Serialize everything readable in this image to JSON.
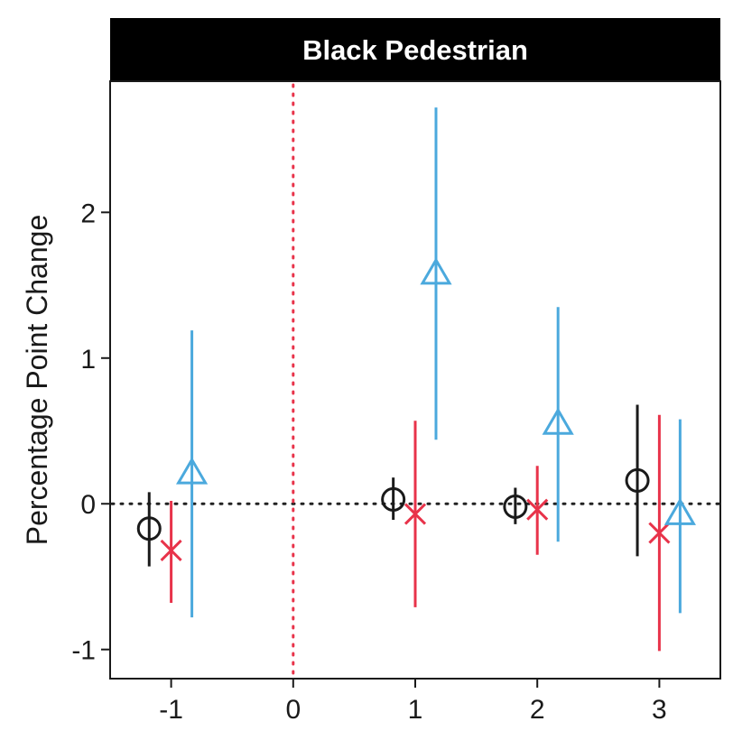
{
  "chart_data": {
    "type": "scatter",
    "subtype": "point-range (coefficient plot)",
    "facet_title": "Black Pedestrian",
    "title": "",
    "xlabel": "",
    "ylabel": "Percentage Point Change",
    "xlim": [
      -1.5,
      3.5
    ],
    "ylim": [
      -1.2,
      2.9
    ],
    "x_ticks": [
      -1,
      0,
      1,
      2,
      3
    ],
    "x_tick_labels": [
      "-1",
      "0",
      "1",
      "2",
      "3"
    ],
    "y_ticks": [
      -1,
      0,
      1,
      2
    ],
    "y_tick_labels": [
      "-1",
      "0",
      "1",
      "2"
    ],
    "reference_lines": {
      "horizontal_y": 0,
      "vertical_x": 0
    },
    "colors": {
      "facet_strip": "#000000",
      "horizontal_ref": "#222222",
      "vertical_ref": "#e8334a"
    },
    "series": [
      {
        "name": "series-circle",
        "marker": "circle",
        "color": "#1a1a1a",
        "offset": -0.18,
        "points": [
          {
            "x": -1,
            "y": -0.17,
            "lo": -0.43,
            "hi": 0.08
          },
          {
            "x": 1,
            "y": 0.03,
            "lo": -0.11,
            "hi": 0.18
          },
          {
            "x": 2,
            "y": -0.02,
            "lo": -0.14,
            "hi": 0.11
          },
          {
            "x": 3,
            "y": 0.16,
            "lo": -0.36,
            "hi": 0.68
          }
        ]
      },
      {
        "name": "series-cross",
        "marker": "cross",
        "color": "#e8334a",
        "offset": 0.0,
        "points": [
          {
            "x": -1,
            "y": -0.32,
            "lo": -0.68,
            "hi": 0.02
          },
          {
            "x": 1,
            "y": -0.07,
            "lo": -0.71,
            "hi": 0.57
          },
          {
            "x": 2,
            "y": -0.04,
            "lo": -0.35,
            "hi": 0.26
          },
          {
            "x": 3,
            "y": -0.2,
            "lo": -1.01,
            "hi": 0.61
          }
        ]
      },
      {
        "name": "series-triangle",
        "marker": "triangle",
        "color": "#4ba9dd",
        "offset": 0.17,
        "points": [
          {
            "x": -1,
            "y": 0.21,
            "lo": -0.78,
            "hi": 1.19
          },
          {
            "x": 1,
            "y": 1.58,
            "lo": 0.44,
            "hi": 2.72
          },
          {
            "x": 2,
            "y": 0.55,
            "lo": -0.26,
            "hi": 1.35
          },
          {
            "x": 3,
            "y": -0.07,
            "lo": -0.75,
            "hi": 0.58
          }
        ]
      }
    ]
  }
}
